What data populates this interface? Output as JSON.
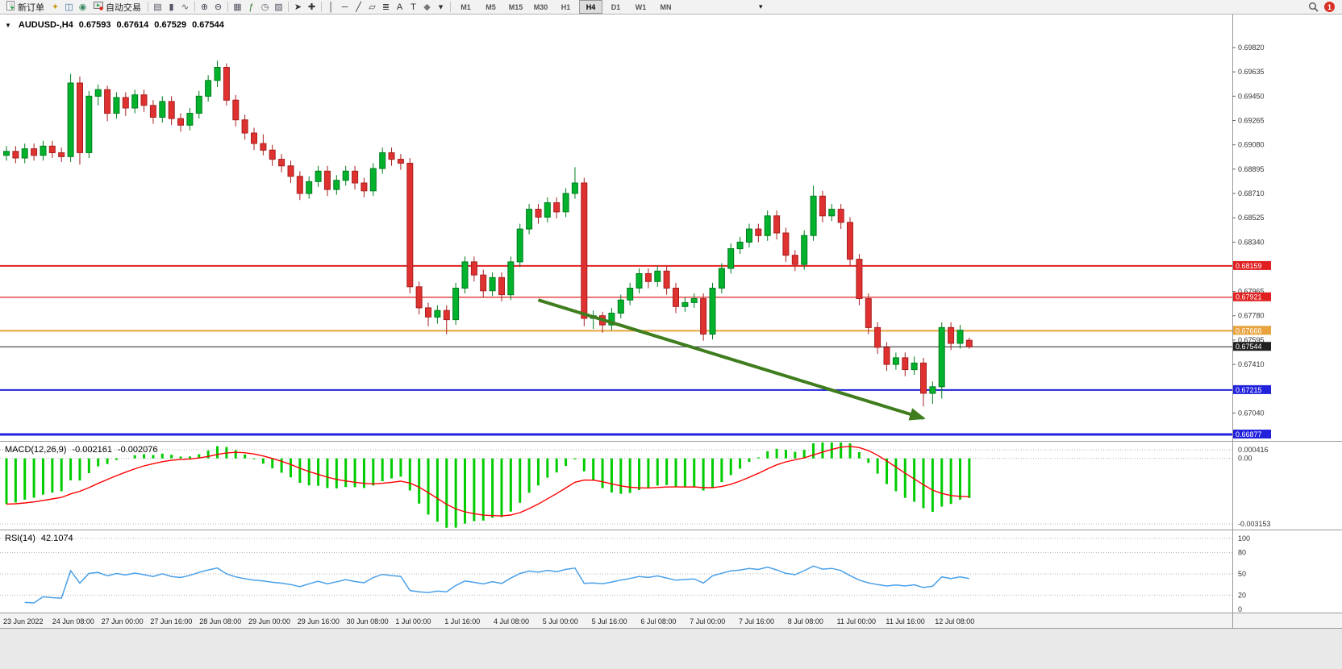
{
  "toolbar": {
    "new_order": {
      "label": "新订单"
    },
    "icons_left": [
      {
        "name": "chart-wizard-icon",
        "glyph": "✦",
        "color": "#c79a1e"
      },
      {
        "name": "profiles-icon",
        "glyph": "◫",
        "color": "#3a6ea5"
      },
      {
        "name": "sound-icon",
        "glyph": "◉",
        "color": "#3a8a5f"
      }
    ],
    "autotrading": {
      "label": "自动交易"
    },
    "icons_main": [
      {
        "name": "toolbar-separator",
        "sep": true
      },
      {
        "name": "bar-chart-icon",
        "glyph": "▤",
        "color": "#555566"
      },
      {
        "name": "candlestick-icon",
        "glyph": "▮",
        "color": "#555566"
      },
      {
        "name": "line-chart-icon",
        "glyph": "∿",
        "color": "#555566"
      },
      {
        "name": "toolbar-separator",
        "sep": true
      },
      {
        "name": "zoom-in-icon",
        "glyph": "⊕",
        "color": "#444455"
      },
      {
        "name": "zoom-out-icon",
        "glyph": "⊖",
        "color": "#444455"
      },
      {
        "name": "toolbar-separator",
        "sep": true
      },
      {
        "name": "tile-windows-icon",
        "glyph": "▦",
        "color": "#556"
      },
      {
        "name": "indicators-icon",
        "glyph": "ƒ",
        "color": "#2a7a2a"
      },
      {
        "name": "periods-icon",
        "glyph": "◷",
        "color": "#556"
      },
      {
        "name": "templates-icon",
        "glyph": "▨",
        "color": "#556"
      },
      {
        "name": "toolbar-separator",
        "sep": true
      },
      {
        "name": "cursor-icon",
        "glyph": "➤",
        "color": "#333"
      },
      {
        "name": "crosshair-icon",
        "glyph": "✚",
        "color": "#333"
      },
      {
        "name": "toolbar-separator",
        "sep": true
      },
      {
        "name": "vertical-line-icon",
        "glyph": "│",
        "color": "#333"
      },
      {
        "name": "horizontal-line-icon",
        "glyph": "─",
        "color": "#333"
      },
      {
        "name": "trendline-icon",
        "glyph": "╱",
        "color": "#333"
      },
      {
        "name": "channel-icon",
        "glyph": "▱",
        "color": "#333"
      },
      {
        "name": "fibonacci-icon",
        "glyph": "≣",
        "color": "#333"
      },
      {
        "name": "text-icon",
        "glyph": "A",
        "color": "#333"
      },
      {
        "name": "label-icon",
        "glyph": "T",
        "color": "#333"
      },
      {
        "name": "shapes-icon",
        "glyph": "◆",
        "color": "#777"
      },
      {
        "name": "dropdown-icon",
        "glyph": "▾",
        "color": "#333"
      },
      {
        "name": "toolbar-separator",
        "sep": true
      }
    ],
    "timeframes": [
      "M1",
      "M5",
      "M15",
      "M30",
      "H1",
      "H4",
      "D1",
      "W1",
      "MN"
    ],
    "active_timeframe": "H4",
    "overflow_glyph": "▾",
    "notification_count": "1"
  },
  "chart": {
    "collapse_glyph": "▼",
    "symbol": "AUDUSD-,H4",
    "open": "0.67593",
    "high": "0.67614",
    "low": "0.67529",
    "close": "0.67544",
    "price_axis_ticks": [
      "0.69820",
      "0.69635",
      "0.69450",
      "0.69265",
      "0.69080",
      "0.68895",
      "0.68710",
      "0.68525",
      "0.68340",
      "0.67965",
      "0.67780",
      "0.67595",
      "0.67410",
      "0.67040"
    ],
    "price_lines": [
      {
        "name": "resistance-line-1",
        "price": 6815.9,
        "label": "0.68159",
        "color": "#e02020",
        "width": 2
      },
      {
        "name": "resistance-line-2",
        "price": 6792.1,
        "label": "0.67921",
        "color": "#e02020",
        "width": 1.2
      },
      {
        "name": "pivot-line-orange",
        "price": 6766.6,
        "label": "0.67666",
        "color": "#e8a33d",
        "width": 2
      },
      {
        "name": "bid-price-line",
        "price": 6754.4,
        "label": "0.67544",
        "color": "#222222",
        "width": 1
      },
      {
        "name": "support-line-1",
        "price": 6721.5,
        "label": "0.67215",
        "color": "#2222dd",
        "width": 2
      },
      {
        "name": "support-line-2",
        "price": 6687.7,
        "label": "0.66877",
        "color": "#2222dd",
        "width": 3
      }
    ],
    "time_axis": [
      "23 Jun 2022",
      "24 Jun 08:00",
      "27 Jun 00:00",
      "27 Jun 16:00",
      "28 Jun 08:00",
      "29 Jun 00:00",
      "29 Jun 16:00",
      "30 Jun 08:00",
      "1 Jul 00:00",
      "1 Jul 16:00",
      "4 Jul 08:00",
      "5 Jul 00:00",
      "5 Jul 16:00",
      "6 Jul 08:00",
      "7 Jul 00:00",
      "7 Jul 16:00",
      "8 Jul 08:00",
      "11 Jul 00:00",
      "11 Jul 16:00",
      "12 Jul 08:00"
    ],
    "arrow": {
      "from": {
        "candle": 58,
        "price": 6790
      },
      "to": {
        "candle": 100,
        "price": 6700
      },
      "color": "#3f7d1e"
    }
  },
  "macd": {
    "label": "MACD(12,26,9)",
    "value_macd": "-0.002161",
    "value_signal": "-0.002076",
    "scale": [
      {
        "label": "0.000416",
        "value": 0.000416
      },
      {
        "label": "0.00",
        "value": 0
      },
      {
        "label": "-0.003153",
        "value": -0.003153
      }
    ]
  },
  "rsi": {
    "label": "RSI(14)",
    "value": "42.1074",
    "scale": [
      {
        "label": "100",
        "value": 100
      },
      {
        "label": "80",
        "value": 80
      },
      {
        "label": "50",
        "value": 50
      },
      {
        "label": "20",
        "value": 20
      },
      {
        "label": "0",
        "value": 0
      }
    ],
    "levels": [
      100,
      80,
      50,
      20
    ]
  },
  "chart_data": {
    "type": "candlestick",
    "symbol": "AUDUSD",
    "timeframe": "H4",
    "price_scale_factor": 0.0001,
    "ohlc_order": [
      "open",
      "high",
      "low",
      "close"
    ],
    "candles": [
      [
        6900,
        6907,
        6896,
        6903
      ],
      [
        6903,
        6907,
        6894,
        6898
      ],
      [
        6898,
        6909,
        6894,
        6905
      ],
      [
        6905,
        6909,
        6896,
        6900
      ],
      [
        6900,
        6911,
        6896,
        6907
      ],
      [
        6907,
        6911,
        6898,
        6902
      ],
      [
        6902,
        6906,
        6895,
        6899
      ],
      [
        6899,
        6962,
        6895,
        6955
      ],
      [
        6955,
        6960,
        6893,
        6902
      ],
      [
        6902,
        6949,
        6898,
        6945
      ],
      [
        6945,
        6954,
        6938,
        6950
      ],
      [
        6950,
        6953,
        6926,
        6932
      ],
      [
        6932,
        6948,
        6928,
        6944
      ],
      [
        6944,
        6948,
        6930,
        6936
      ],
      [
        6936,
        6950,
        6932,
        6946
      ],
      [
        6946,
        6950,
        6933,
        6938
      ],
      [
        6938,
        6942,
        6924,
        6929
      ],
      [
        6929,
        6945,
        6925,
        6941
      ],
      [
        6941,
        6945,
        6923,
        6928
      ],
      [
        6928,
        6932,
        6918,
        6923
      ],
      [
        6923,
        6936,
        6919,
        6932
      ],
      [
        6932,
        6949,
        6928,
        6945
      ],
      [
        6945,
        6961,
        6941,
        6957
      ],
      [
        6957,
        6972,
        6952,
        6967
      ],
      [
        6967,
        6970,
        6938,
        6942
      ],
      [
        6942,
        6946,
        6922,
        6927
      ],
      [
        6927,
        6931,
        6912,
        6917
      ],
      [
        6917,
        6921,
        6904,
        6909
      ],
      [
        6909,
        6916,
        6900,
        6904
      ],
      [
        6904,
        6908,
        6892,
        6897
      ],
      [
        6897,
        6901,
        6887,
        6892
      ],
      [
        6892,
        6896,
        6879,
        6884
      ],
      [
        6884,
        6888,
        6866,
        6871
      ],
      [
        6871,
        6884,
        6867,
        6880
      ],
      [
        6880,
        6892,
        6876,
        6888
      ],
      [
        6888,
        6892,
        6869,
        6874
      ],
      [
        6874,
        6885,
        6870,
        6881
      ],
      [
        6881,
        6892,
        6877,
        6888
      ],
      [
        6888,
        6892,
        6874,
        6879
      ],
      [
        6879,
        6883,
        6868,
        6873
      ],
      [
        6873,
        6894,
        6869,
        6890
      ],
      [
        6890,
        6906,
        6886,
        6902
      ],
      [
        6902,
        6906,
        6892,
        6897
      ],
      [
        6897,
        6901,
        6889,
        6894
      ],
      [
        6894,
        6898,
        6795,
        6800
      ],
      [
        6800,
        6804,
        6779,
        6784
      ],
      [
        6784,
        6788,
        6770,
        6777
      ],
      [
        6777,
        6786,
        6772,
        6782
      ],
      [
        6782,
        6786,
        6764,
        6775
      ],
      [
        6775,
        6803,
        6771,
        6799
      ],
      [
        6799,
        6823,
        6795,
        6819
      ],
      [
        6819,
        6823,
        6804,
        6809
      ],
      [
        6809,
        6813,
        6792,
        6797
      ],
      [
        6797,
        6811,
        6793,
        6807
      ],
      [
        6807,
        6811,
        6789,
        6794
      ],
      [
        6794,
        6823,
        6790,
        6819
      ],
      [
        6819,
        6848,
        6815,
        6844
      ],
      [
        6844,
        6863,
        6840,
        6859
      ],
      [
        6859,
        6863,
        6848,
        6853
      ],
      [
        6853,
        6868,
        6849,
        6864
      ],
      [
        6864,
        6868,
        6852,
        6857
      ],
      [
        6857,
        6875,
        6853,
        6871
      ],
      [
        6871,
        6891,
        6867,
        6879
      ],
      [
        6879,
        6883,
        6770,
        6776
      ],
      [
        6776,
        6782,
        6768,
        6778
      ],
      [
        6778,
        6781,
        6765,
        6771
      ],
      [
        6771,
        6784,
        6767,
        6780
      ],
      [
        6780,
        6794,
        6776,
        6790
      ],
      [
        6790,
        6803,
        6786,
        6799
      ],
      [
        6799,
        6814,
        6795,
        6810
      ],
      [
        6810,
        6814,
        6799,
        6804
      ],
      [
        6804,
        6816,
        6800,
        6812
      ],
      [
        6812,
        6816,
        6794,
        6799
      ],
      [
        6799,
        6803,
        6780,
        6785
      ],
      [
        6785,
        6792,
        6781,
        6788
      ],
      [
        6788,
        6795,
        6784,
        6791
      ],
      [
        6791,
        6795,
        6759,
        6764
      ],
      [
        6764,
        6803,
        6760,
        6799
      ],
      [
        6799,
        6818,
        6795,
        6814
      ],
      [
        6814,
        6833,
        6810,
        6829
      ],
      [
        6829,
        6838,
        6825,
        6834
      ],
      [
        6834,
        6848,
        6830,
        6844
      ],
      [
        6844,
        6848,
        6834,
        6839
      ],
      [
        6839,
        6858,
        6835,
        6854
      ],
      [
        6854,
        6858,
        6836,
        6841
      ],
      [
        6841,
        6845,
        6819,
        6824
      ],
      [
        6824,
        6828,
        6812,
        6817
      ],
      [
        6817,
        6843,
        6813,
        6839
      ],
      [
        6839,
        6877,
        6835,
        6869
      ],
      [
        6869,
        6873,
        6849,
        6854
      ],
      [
        6854,
        6863,
        6850,
        6859
      ],
      [
        6859,
        6863,
        6844,
        6849
      ],
      [
        6849,
        6853,
        6816,
        6821
      ],
      [
        6821,
        6825,
        6786,
        6791
      ],
      [
        6791,
        6795,
        6764,
        6769
      ],
      [
        6769,
        6773,
        6749,
        6754
      ],
      [
        6754,
        6758,
        6736,
        6741
      ],
      [
        6741,
        6750,
        6737,
        6746
      ],
      [
        6746,
        6750,
        6732,
        6737
      ],
      [
        6737,
        6747,
        6733,
        6742
      ],
      [
        6742,
        6746,
        6709,
        6719
      ],
      [
        6719,
        6728,
        6711,
        6724
      ],
      [
        6724,
        6773,
        6715,
        6769
      ],
      [
        6769,
        6773,
        6752,
        6757
      ],
      [
        6757,
        6771,
        6753,
        6767
      ],
      [
        6759.3,
        6761.4,
        6752.9,
        6754.4
      ]
    ],
    "indicators": [
      {
        "name": "MACD",
        "params": [
          12,
          26,
          9
        ]
      },
      {
        "name": "RSI",
        "params": [
          14
        ]
      }
    ]
  },
  "colors": {
    "up": "#00b22c",
    "down": "#e03131",
    "up_border": "#007d1e",
    "down_border": "#a81e1e",
    "macd_hist": "#00cc00",
    "macd_signal": "#ff0000",
    "rsi_line": "#4aa0e8",
    "arrow": "#3f7d1e"
  }
}
